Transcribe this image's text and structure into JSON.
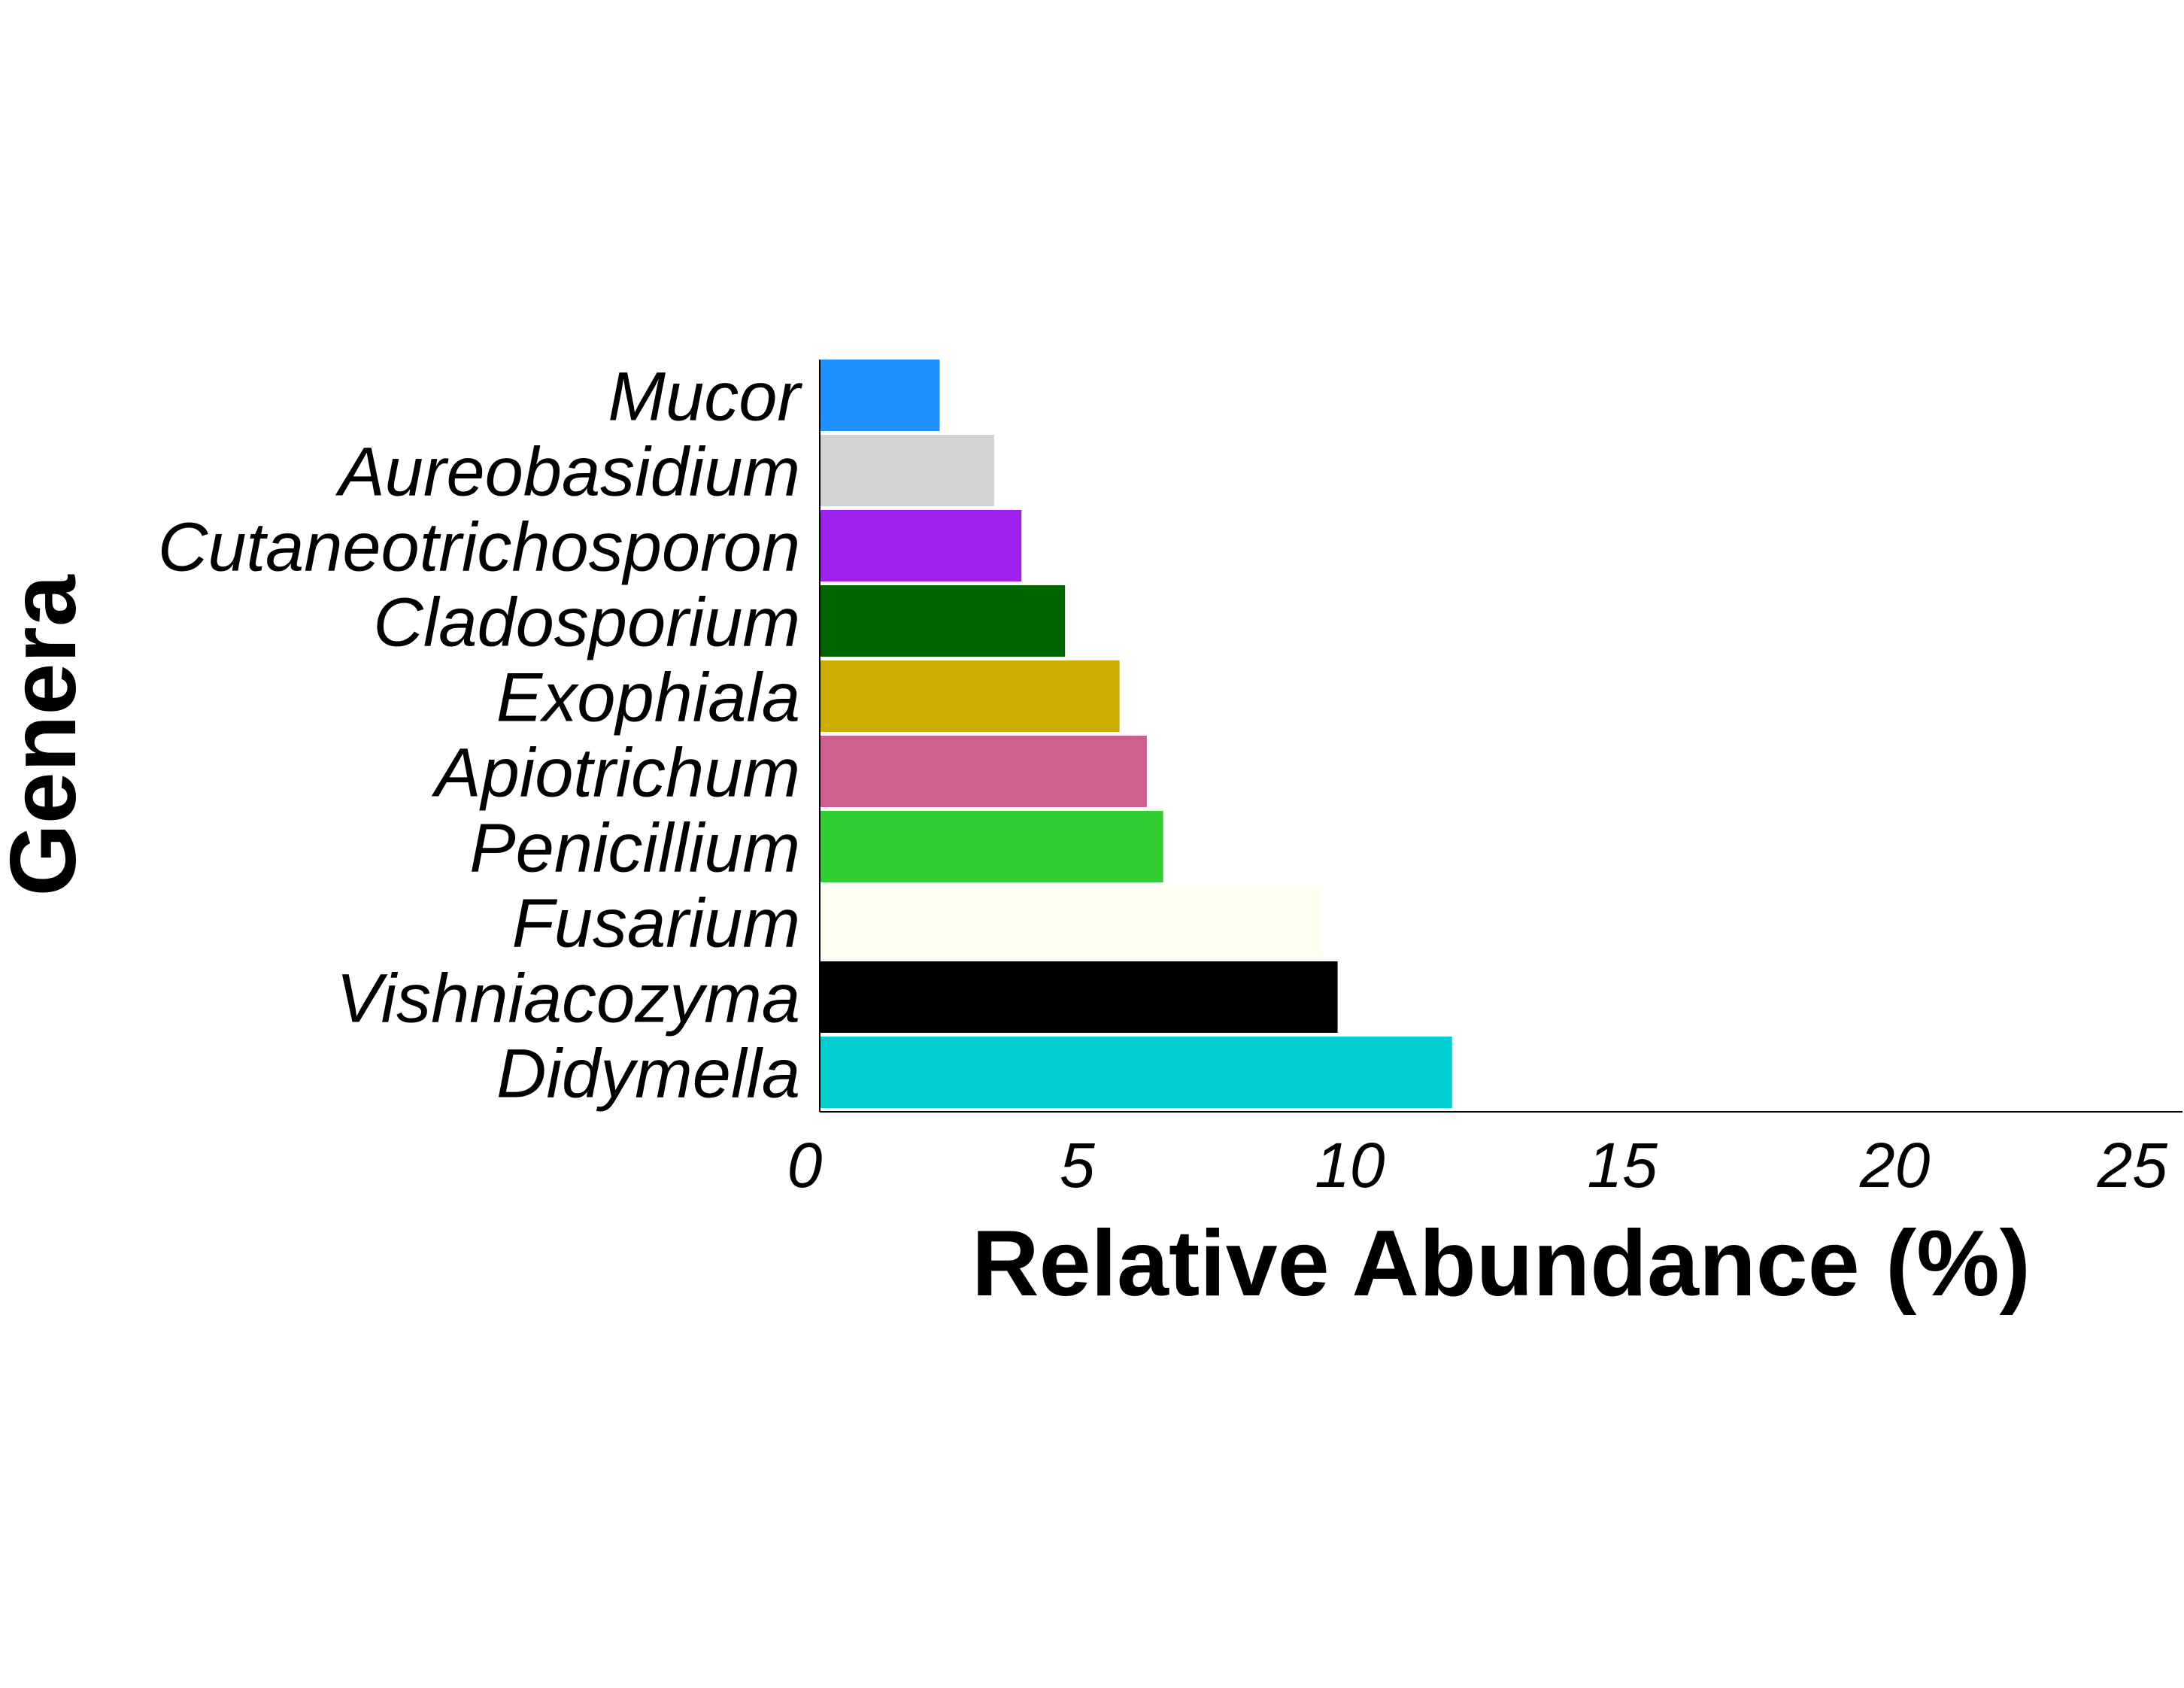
{
  "chart_data": {
    "type": "bar",
    "orientation": "horizontal",
    "categories": [
      "Mucor",
      "Aureobasidium",
      "Cutaneotrichosporon",
      "Cladosporium",
      "Exophiala",
      "Apiotrichum",
      "Penicillium",
      "Fusarium",
      "Vishniacozyma",
      "Didymella"
    ],
    "values": [
      2.2,
      3.2,
      3.7,
      4.5,
      5.5,
      6.0,
      6.3,
      9.2,
      9.5,
      11.6
    ],
    "colors": [
      "#1E90FF",
      "#D3D3D3",
      "#A020F0",
      "#006400",
      "#CDAD00",
      "#CD6090",
      "#32CD32",
      "#FFFFF0",
      "#000000",
      "#00CED1"
    ],
    "xlabel": "Relative Abundance (%)",
    "ylabel": "Genera",
    "xlim": [
      0,
      25
    ],
    "xticks": [
      "0",
      "5",
      "10",
      "15",
      "20",
      "25"
    ],
    "grid": false,
    "legend": "none"
  }
}
